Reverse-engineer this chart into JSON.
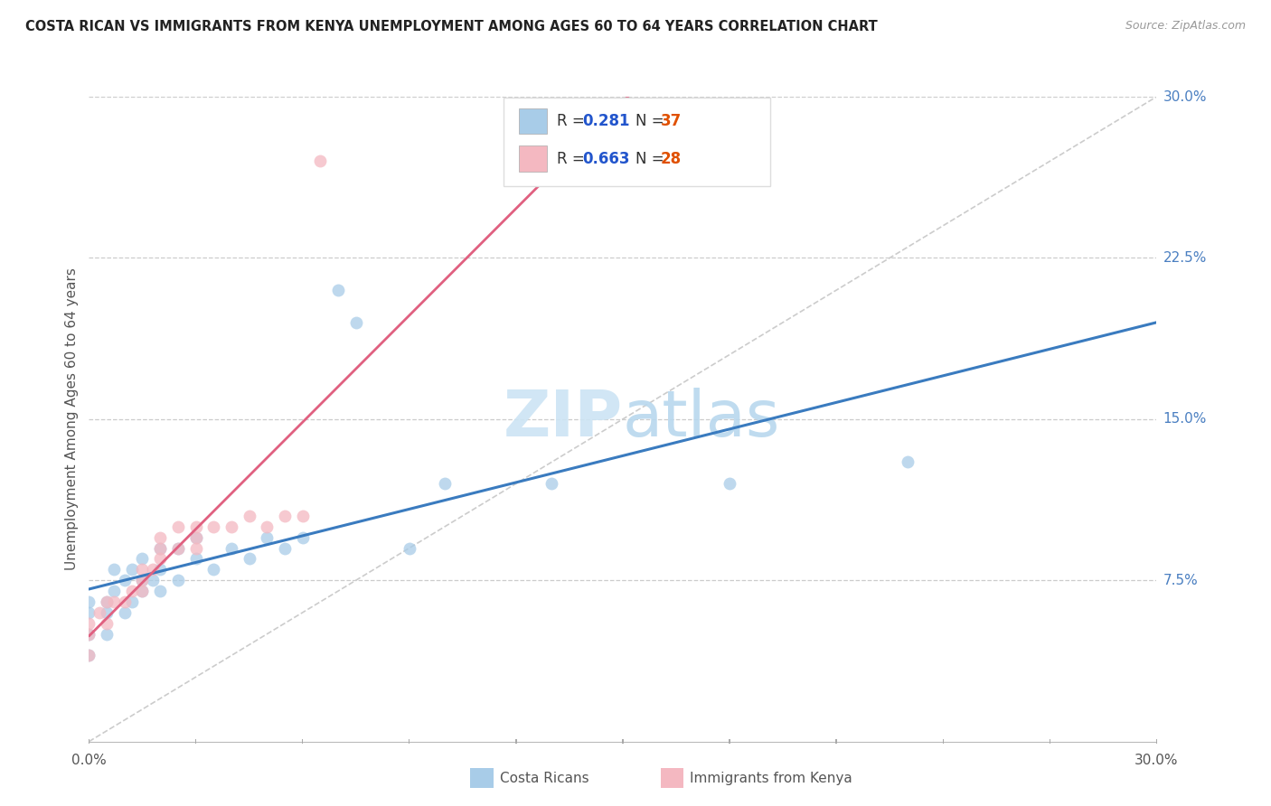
{
  "title": "COSTA RICAN VS IMMIGRANTS FROM KENYA UNEMPLOYMENT AMONG AGES 60 TO 64 YEARS CORRELATION CHART",
  "source": "Source: ZipAtlas.com",
  "ylabel": "Unemployment Among Ages 60 to 64 years",
  "xlim": [
    0.0,
    0.3
  ],
  "ylim": [
    0.0,
    0.3
  ],
  "xticks": [
    0.0,
    0.075,
    0.15,
    0.225,
    0.3
  ],
  "yticks": [
    0.075,
    0.15,
    0.225,
    0.3
  ],
  "xticklabels": [
    "0.0%",
    "",
    "",
    "",
    "30.0%"
  ],
  "yticklabels": [
    "7.5%",
    "15.0%",
    "22.5%",
    "30.0%"
  ],
  "bottom_xticklabels": [
    "0.0%",
    "30.0%"
  ],
  "cr_R": 0.281,
  "cr_N": 37,
  "ken_R": 0.663,
  "ken_N": 28,
  "cr_color": "#a8cce8",
  "ken_color": "#f4b8c1",
  "cr_line_color": "#3a7bbf",
  "ken_line_color": "#e06080",
  "ken_line_dashed_color": "#c8c8c8",
  "watermark_zip": "ZIP",
  "watermark_atlas": "atlas",
  "costa_rican_x": [
    0.0,
    0.0,
    0.0,
    0.0,
    0.005,
    0.005,
    0.005,
    0.007,
    0.007,
    0.01,
    0.01,
    0.012,
    0.012,
    0.015,
    0.015,
    0.015,
    0.018,
    0.02,
    0.02,
    0.02,
    0.025,
    0.025,
    0.03,
    0.03,
    0.035,
    0.04,
    0.045,
    0.05,
    0.055,
    0.06,
    0.07,
    0.075,
    0.09,
    0.1,
    0.13,
    0.18,
    0.23
  ],
  "costa_rican_y": [
    0.04,
    0.05,
    0.06,
    0.065,
    0.05,
    0.06,
    0.065,
    0.07,
    0.08,
    0.06,
    0.075,
    0.065,
    0.08,
    0.07,
    0.075,
    0.085,
    0.075,
    0.07,
    0.08,
    0.09,
    0.075,
    0.09,
    0.085,
    0.095,
    0.08,
    0.09,
    0.085,
    0.095,
    0.09,
    0.095,
    0.21,
    0.195,
    0.09,
    0.12,
    0.12,
    0.12,
    0.13
  ],
  "kenya_x": [
    0.0,
    0.0,
    0.0,
    0.003,
    0.005,
    0.005,
    0.007,
    0.01,
    0.012,
    0.015,
    0.015,
    0.015,
    0.018,
    0.02,
    0.02,
    0.02,
    0.025,
    0.025,
    0.03,
    0.03,
    0.03,
    0.035,
    0.04,
    0.045,
    0.05,
    0.055,
    0.06,
    0.065
  ],
  "kenya_y": [
    0.04,
    0.05,
    0.055,
    0.06,
    0.055,
    0.065,
    0.065,
    0.065,
    0.07,
    0.07,
    0.075,
    0.08,
    0.08,
    0.085,
    0.09,
    0.095,
    0.09,
    0.1,
    0.09,
    0.095,
    0.1,
    0.1,
    0.1,
    0.105,
    0.1,
    0.105,
    0.105,
    0.27
  ]
}
